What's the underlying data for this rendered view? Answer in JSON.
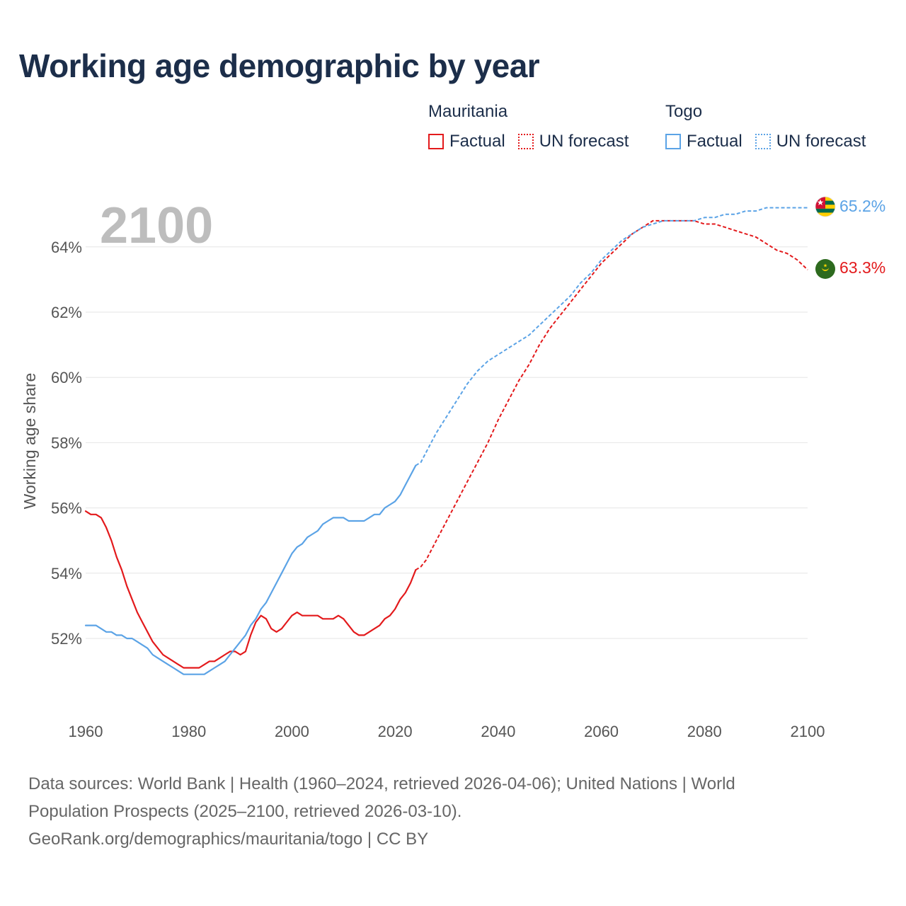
{
  "title": "Working age demographic by year",
  "year_display": "2100",
  "legend": {
    "groups": [
      {
        "name": "Mauritania",
        "color": "#e31a1c",
        "items": [
          {
            "label": "Factual",
            "style": "solid"
          },
          {
            "label": "UN forecast",
            "style": "dotted"
          }
        ]
      },
      {
        "name": "Togo",
        "color": "#5ba3e6",
        "items": [
          {
            "label": "Factual",
            "style": "solid"
          },
          {
            "label": "UN forecast",
            "style": "dotted"
          }
        ]
      }
    ]
  },
  "chart_data": {
    "type": "line",
    "title": "Working age demographic by year",
    "xlabel": "",
    "ylabel": "Working age share",
    "xlim": [
      1960,
      2100
    ],
    "ylim": [
      50,
      65.5
    ],
    "x_ticks": [
      1960,
      1980,
      2000,
      2020,
      2040,
      2060,
      2080,
      2100
    ],
    "y_ticks": [
      52,
      54,
      56,
      58,
      60,
      62,
      64
    ],
    "y_tick_labels": [
      "52%",
      "54%",
      "56%",
      "58%",
      "60%",
      "62%",
      "64%"
    ],
    "factual_range": [
      1960,
      2024
    ],
    "forecast_range": [
      2024,
      2100
    ],
    "series": [
      {
        "name": "Mauritania",
        "color": "#e31a1c",
        "end_label": "63.3%",
        "flag": "mauritania-flag-icon",
        "factual": [
          [
            1960,
            55.9
          ],
          [
            1961,
            55.8
          ],
          [
            1962,
            55.8
          ],
          [
            1963,
            55.7
          ],
          [
            1964,
            55.4
          ],
          [
            1965,
            55.0
          ],
          [
            1966,
            54.5
          ],
          [
            1967,
            54.1
          ],
          [
            1968,
            53.6
          ],
          [
            1969,
            53.2
          ],
          [
            1970,
            52.8
          ],
          [
            1971,
            52.5
          ],
          [
            1972,
            52.2
          ],
          [
            1973,
            51.9
          ],
          [
            1974,
            51.7
          ],
          [
            1975,
            51.5
          ],
          [
            1976,
            51.4
          ],
          [
            1977,
            51.3
          ],
          [
            1978,
            51.2
          ],
          [
            1979,
            51.1
          ],
          [
            1980,
            51.1
          ],
          [
            1981,
            51.1
          ],
          [
            1982,
            51.1
          ],
          [
            1983,
            51.2
          ],
          [
            1984,
            51.3
          ],
          [
            1985,
            51.3
          ],
          [
            1986,
            51.4
          ],
          [
            1987,
            51.5
          ],
          [
            1988,
            51.6
          ],
          [
            1989,
            51.6
          ],
          [
            1990,
            51.5
          ],
          [
            1991,
            51.6
          ],
          [
            1992,
            52.1
          ],
          [
            1993,
            52.5
          ],
          [
            1994,
            52.7
          ],
          [
            1995,
            52.6
          ],
          [
            1996,
            52.3
          ],
          [
            1997,
            52.2
          ],
          [
            1998,
            52.3
          ],
          [
            1999,
            52.5
          ],
          [
            2000,
            52.7
          ],
          [
            2001,
            52.8
          ],
          [
            2002,
            52.7
          ],
          [
            2003,
            52.7
          ],
          [
            2004,
            52.7
          ],
          [
            2005,
            52.7
          ],
          [
            2006,
            52.6
          ],
          [
            2007,
            52.6
          ],
          [
            2008,
            52.6
          ],
          [
            2009,
            52.7
          ],
          [
            2010,
            52.6
          ],
          [
            2011,
            52.4
          ],
          [
            2012,
            52.2
          ],
          [
            2013,
            52.1
          ],
          [
            2014,
            52.1
          ],
          [
            2015,
            52.2
          ],
          [
            2016,
            52.3
          ],
          [
            2017,
            52.4
          ],
          [
            2018,
            52.6
          ],
          [
            2019,
            52.7
          ],
          [
            2020,
            52.9
          ],
          [
            2021,
            53.2
          ],
          [
            2022,
            53.4
          ],
          [
            2023,
            53.7
          ],
          [
            2024,
            54.1
          ]
        ],
        "forecast": [
          [
            2024,
            54.1
          ],
          [
            2025,
            54.2
          ],
          [
            2026,
            54.4
          ],
          [
            2028,
            55.0
          ],
          [
            2030,
            55.6
          ],
          [
            2032,
            56.2
          ],
          [
            2034,
            56.8
          ],
          [
            2036,
            57.4
          ],
          [
            2038,
            58.0
          ],
          [
            2040,
            58.7
          ],
          [
            2042,
            59.3
          ],
          [
            2044,
            59.9
          ],
          [
            2046,
            60.4
          ],
          [
            2048,
            61.0
          ],
          [
            2050,
            61.5
          ],
          [
            2052,
            61.9
          ],
          [
            2054,
            62.3
          ],
          [
            2056,
            62.7
          ],
          [
            2058,
            63.1
          ],
          [
            2060,
            63.5
          ],
          [
            2062,
            63.8
          ],
          [
            2064,
            64.1
          ],
          [
            2066,
            64.4
          ],
          [
            2068,
            64.6
          ],
          [
            2070,
            64.8
          ],
          [
            2072,
            64.8
          ],
          [
            2074,
            64.8
          ],
          [
            2076,
            64.8
          ],
          [
            2078,
            64.8
          ],
          [
            2080,
            64.7
          ],
          [
            2082,
            64.7
          ],
          [
            2084,
            64.6
          ],
          [
            2086,
            64.5
          ],
          [
            2088,
            64.4
          ],
          [
            2090,
            64.3
          ],
          [
            2092,
            64.1
          ],
          [
            2094,
            63.9
          ],
          [
            2096,
            63.8
          ],
          [
            2098,
            63.6
          ],
          [
            2100,
            63.3
          ]
        ]
      },
      {
        "name": "Togo",
        "color": "#5ba3e6",
        "end_label": "65.2%",
        "flag": "togo-flag-icon",
        "factual": [
          [
            1960,
            52.4
          ],
          [
            1961,
            52.4
          ],
          [
            1962,
            52.4
          ],
          [
            1963,
            52.3
          ],
          [
            1964,
            52.2
          ],
          [
            1965,
            52.2
          ],
          [
            1966,
            52.1
          ],
          [
            1967,
            52.1
          ],
          [
            1968,
            52.0
          ],
          [
            1969,
            52.0
          ],
          [
            1970,
            51.9
          ],
          [
            1971,
            51.8
          ],
          [
            1972,
            51.7
          ],
          [
            1973,
            51.5
          ],
          [
            1974,
            51.4
          ],
          [
            1975,
            51.3
          ],
          [
            1976,
            51.2
          ],
          [
            1977,
            51.1
          ],
          [
            1978,
            51.0
          ],
          [
            1979,
            50.9
          ],
          [
            1980,
            50.9
          ],
          [
            1981,
            50.9
          ],
          [
            1982,
            50.9
          ],
          [
            1983,
            50.9
          ],
          [
            1984,
            51.0
          ],
          [
            1985,
            51.1
          ],
          [
            1986,
            51.2
          ],
          [
            1987,
            51.3
          ],
          [
            1988,
            51.5
          ],
          [
            1989,
            51.7
          ],
          [
            1990,
            51.9
          ],
          [
            1991,
            52.1
          ],
          [
            1992,
            52.4
          ],
          [
            1993,
            52.6
          ],
          [
            1994,
            52.9
          ],
          [
            1995,
            53.1
          ],
          [
            1996,
            53.4
          ],
          [
            1997,
            53.7
          ],
          [
            1998,
            54.0
          ],
          [
            1999,
            54.3
          ],
          [
            2000,
            54.6
          ],
          [
            2001,
            54.8
          ],
          [
            2002,
            54.9
          ],
          [
            2003,
            55.1
          ],
          [
            2004,
            55.2
          ],
          [
            2005,
            55.3
          ],
          [
            2006,
            55.5
          ],
          [
            2007,
            55.6
          ],
          [
            2008,
            55.7
          ],
          [
            2009,
            55.7
          ],
          [
            2010,
            55.7
          ],
          [
            2011,
            55.6
          ],
          [
            2012,
            55.6
          ],
          [
            2013,
            55.6
          ],
          [
            2014,
            55.6
          ],
          [
            2015,
            55.7
          ],
          [
            2016,
            55.8
          ],
          [
            2017,
            55.8
          ],
          [
            2018,
            56.0
          ],
          [
            2019,
            56.1
          ],
          [
            2020,
            56.2
          ],
          [
            2021,
            56.4
          ],
          [
            2022,
            56.7
          ],
          [
            2023,
            57.0
          ],
          [
            2024,
            57.3
          ]
        ],
        "forecast": [
          [
            2024,
            57.3
          ],
          [
            2025,
            57.4
          ],
          [
            2026,
            57.7
          ],
          [
            2028,
            58.3
          ],
          [
            2030,
            58.8
          ],
          [
            2032,
            59.3
          ],
          [
            2034,
            59.8
          ],
          [
            2036,
            60.2
          ],
          [
            2038,
            60.5
          ],
          [
            2040,
            60.7
          ],
          [
            2042,
            60.9
          ],
          [
            2044,
            61.1
          ],
          [
            2046,
            61.3
          ],
          [
            2048,
            61.6
          ],
          [
            2050,
            61.9
          ],
          [
            2052,
            62.2
          ],
          [
            2054,
            62.5
          ],
          [
            2056,
            62.9
          ],
          [
            2058,
            63.2
          ],
          [
            2060,
            63.6
          ],
          [
            2062,
            63.9
          ],
          [
            2064,
            64.2
          ],
          [
            2066,
            64.4
          ],
          [
            2068,
            64.6
          ],
          [
            2070,
            64.7
          ],
          [
            2072,
            64.8
          ],
          [
            2074,
            64.8
          ],
          [
            2076,
            64.8
          ],
          [
            2078,
            64.8
          ],
          [
            2080,
            64.9
          ],
          [
            2082,
            64.9
          ],
          [
            2084,
            65.0
          ],
          [
            2086,
            65.0
          ],
          [
            2088,
            65.1
          ],
          [
            2090,
            65.1
          ],
          [
            2092,
            65.2
          ],
          [
            2094,
            65.2
          ],
          [
            2096,
            65.2
          ],
          [
            2098,
            65.2
          ],
          [
            2100,
            65.2
          ]
        ]
      }
    ]
  },
  "footer": {
    "line1": "Data sources: World Bank | Health (1960–2024, retrieved 2026-04-06); United Nations | World",
    "line2": "Population Prospects (2025–2100, retrieved 2026-03-10).",
    "line3": "GeoRank.org/demographics/mauritania/togo | CC BY"
  }
}
